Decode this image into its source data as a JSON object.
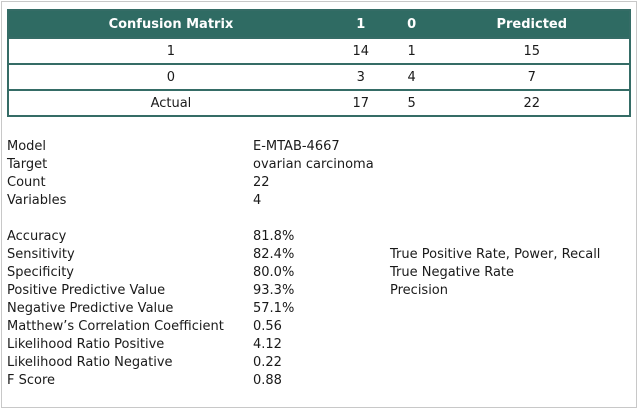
{
  "matrix": {
    "headers": [
      "Confusion Matrix",
      "1",
      "0",
      "Predicted"
    ],
    "rows": [
      [
        "1",
        "14",
        "1",
        "15"
      ],
      [
        "0",
        "3",
        "4",
        "7"
      ],
      [
        "Actual",
        "17",
        "5",
        "22"
      ]
    ]
  },
  "info": [
    {
      "label": "Model",
      "value": "E-MTAB-4667"
    },
    {
      "label": "Target",
      "value": "ovarian carcinoma"
    },
    {
      "label": "Count",
      "value": "22"
    },
    {
      "label": "Variables",
      "value": "4"
    }
  ],
  "metrics": [
    {
      "label": "Accuracy",
      "value": "81.8%",
      "note": ""
    },
    {
      "label": "Sensitivity",
      "value": "82.4%",
      "note": "True Positive Rate, Power, Recall"
    },
    {
      "label": "Specificity",
      "value": "80.0%",
      "note": "True Negative Rate"
    },
    {
      "label": "Positive Predictive Value",
      "value": "93.3%",
      "note": "Precision"
    },
    {
      "label": "Negative Predictive Value",
      "value": "57.1%",
      "note": ""
    },
    {
      "label": "Matthew’s Correlation Coefficient",
      "value": "0.56",
      "note": ""
    },
    {
      "label": "Likelihood Ratio Positive",
      "value": "4.12",
      "note": ""
    },
    {
      "label": "Likelihood Ratio Negative",
      "value": "0.22",
      "note": ""
    },
    {
      "label": "F Score",
      "value": "0.88",
      "note": ""
    }
  ]
}
